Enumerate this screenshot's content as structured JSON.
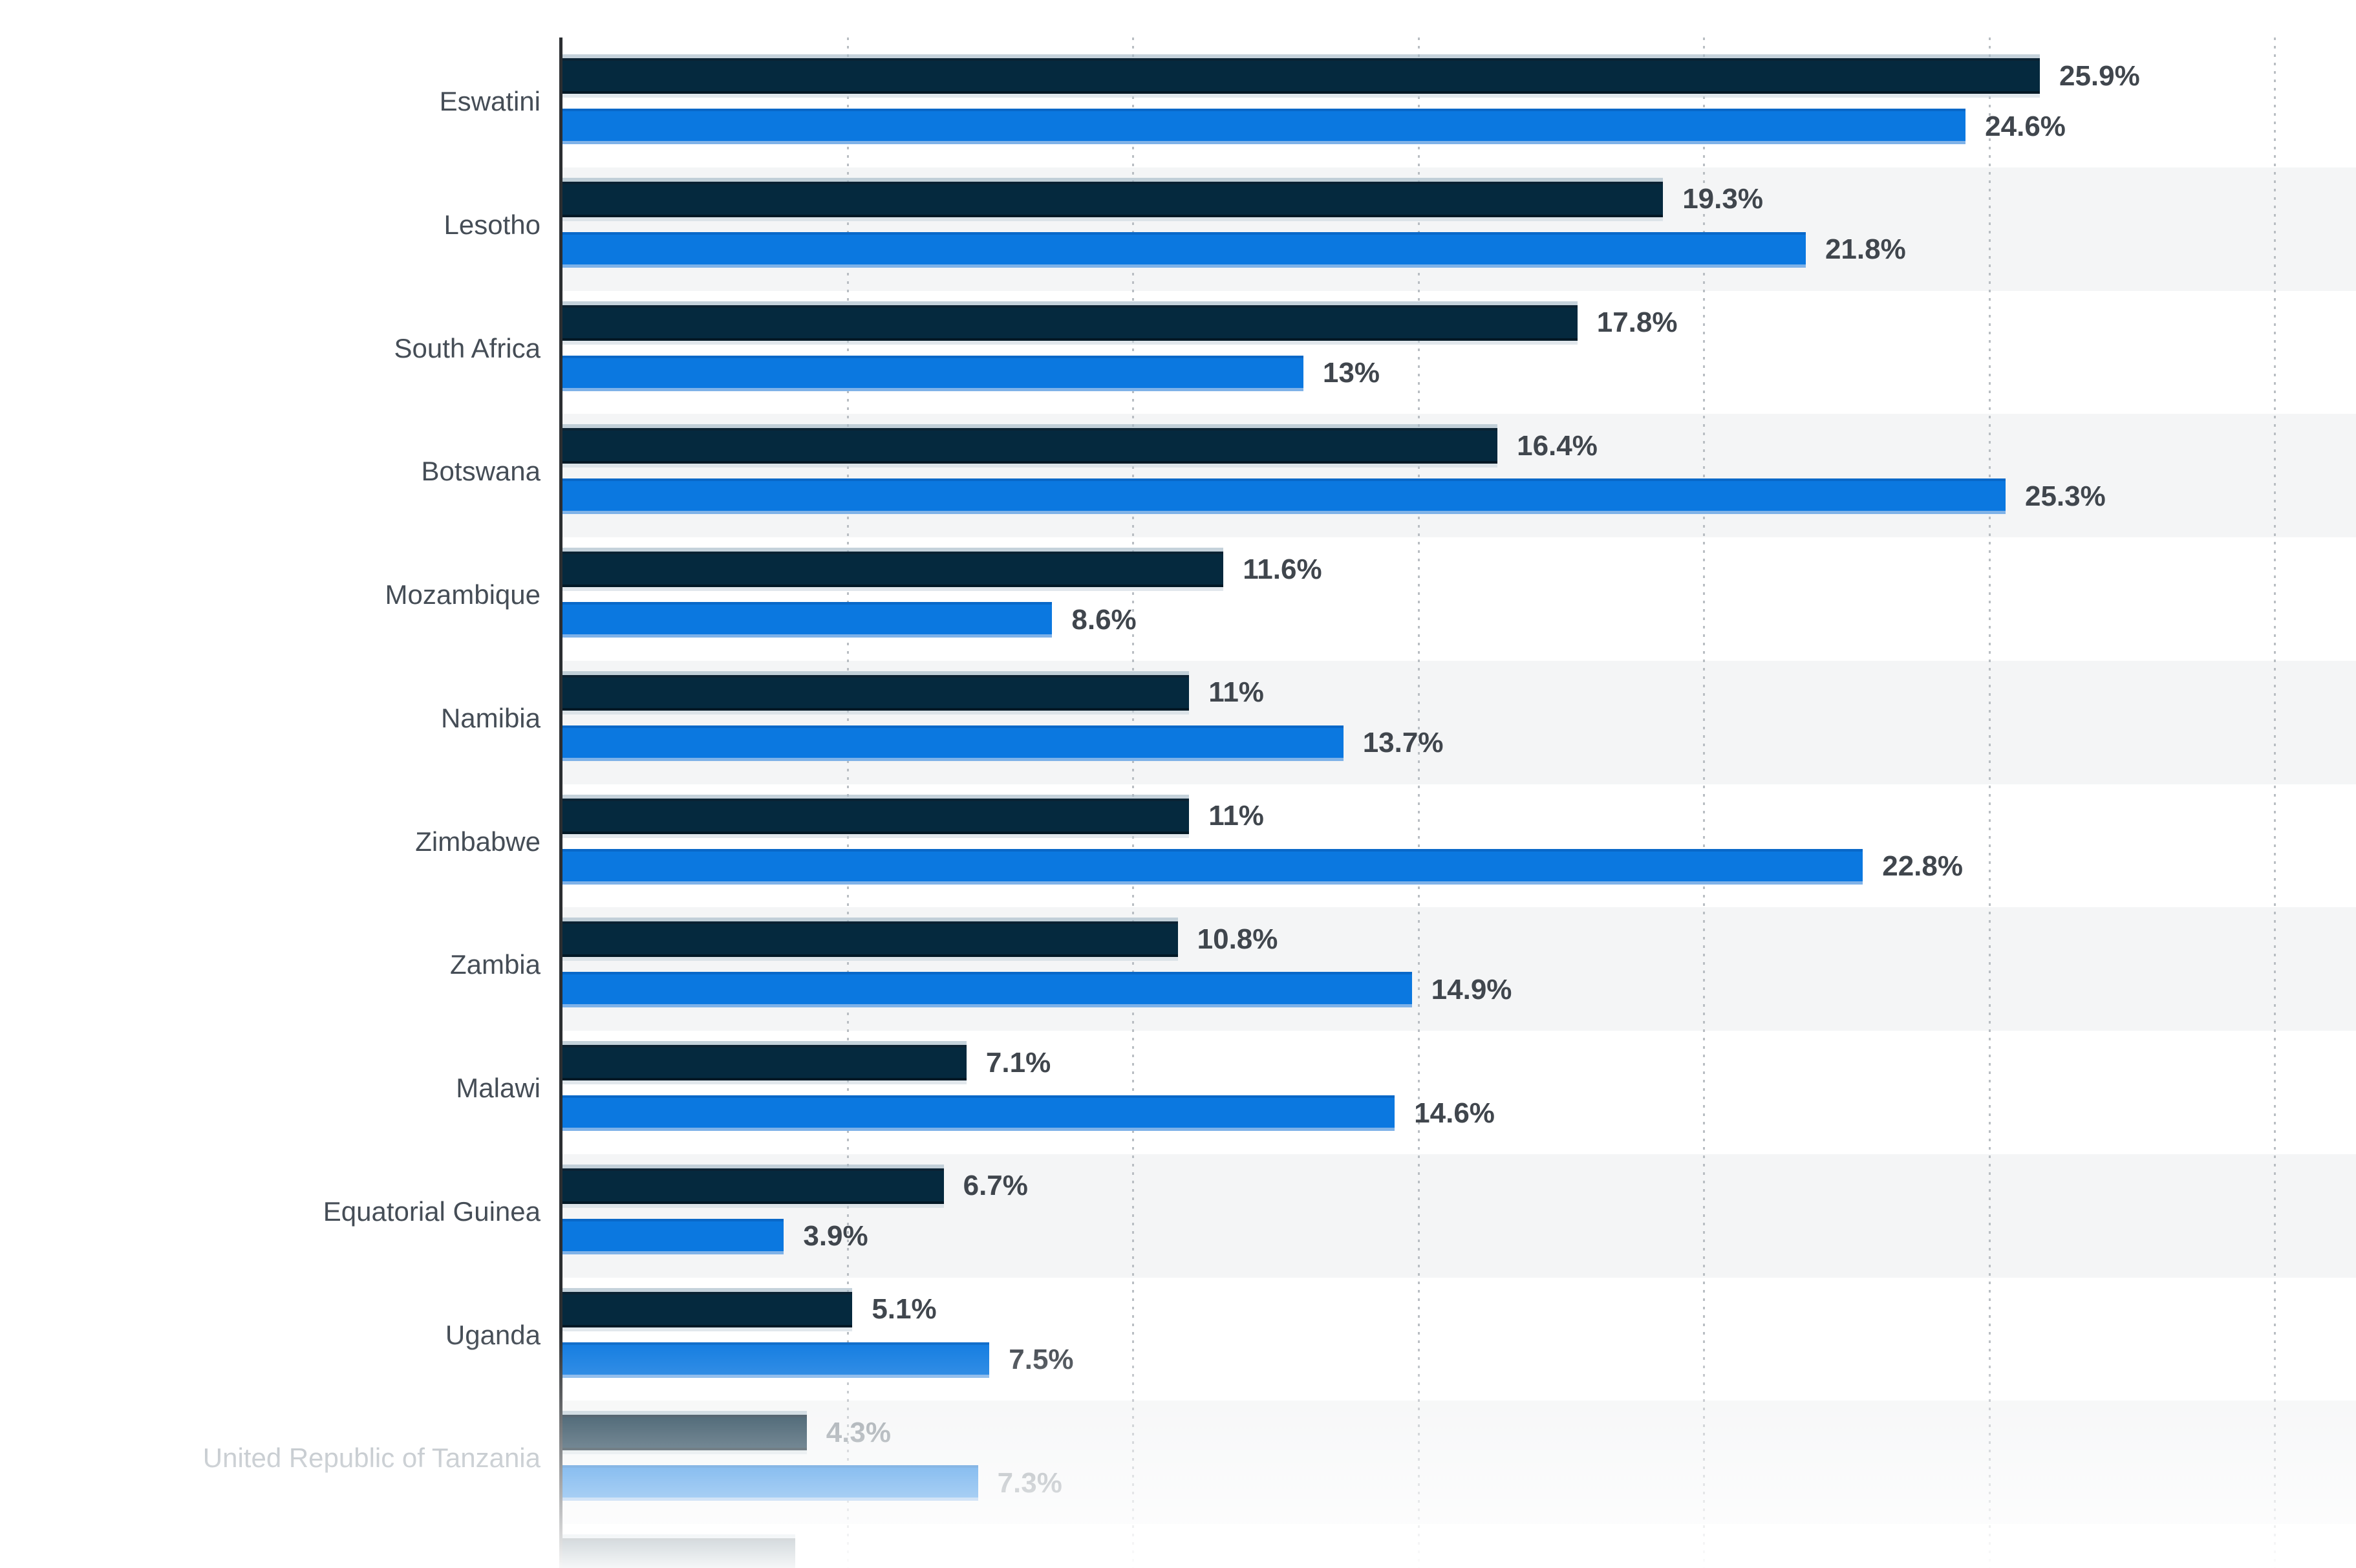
{
  "chart_data": {
    "type": "bar",
    "orientation": "horizontal",
    "unit": "percent",
    "grid": "dashed-vertical",
    "x_gridlines_pct": [
      5,
      10,
      15,
      20,
      25,
      30
    ],
    "xlim": [
      0,
      31.4
    ],
    "legend": "none",
    "series_names": [
      "dark-navy-series",
      "blue-series"
    ],
    "series_colors": {
      "dark": "#05293e",
      "blue": "#0b78e0"
    },
    "categories": [
      "Eswatini",
      "Lesotho",
      "South Africa",
      "Botswana",
      "Mozambique",
      "Namibia",
      "Zimbabwe",
      "Zambia",
      "Malawi",
      "Equatorial Guinea",
      "Uganda",
      "United Republic of Tanzania"
    ],
    "rows": [
      {
        "label": "Eswatini",
        "dark": 25.9,
        "dark_text": "25.9%",
        "blue": 24.6,
        "blue_text": "24.6%",
        "faded": false
      },
      {
        "label": "Lesotho",
        "dark": 19.3,
        "dark_text": "19.3%",
        "blue": 21.8,
        "blue_text": "21.8%",
        "faded": false
      },
      {
        "label": "South Africa",
        "dark": 17.8,
        "dark_text": "17.8%",
        "blue": 13,
        "blue_text": "13%",
        "faded": false
      },
      {
        "label": "Botswana",
        "dark": 16.4,
        "dark_text": "16.4%",
        "blue": 25.3,
        "blue_text": "25.3%",
        "faded": false
      },
      {
        "label": "Mozambique",
        "dark": 11.6,
        "dark_text": "11.6%",
        "blue": 8.6,
        "blue_text": "8.6%",
        "faded": false
      },
      {
        "label": "Namibia",
        "dark": 11,
        "dark_text": "11%",
        "blue": 13.7,
        "blue_text": "13.7%",
        "faded": false
      },
      {
        "label": "Zimbabwe",
        "dark": 11,
        "dark_text": "11%",
        "blue": 22.8,
        "blue_text": "22.8%",
        "faded": false
      },
      {
        "label": "Zambia",
        "dark": 10.8,
        "dark_text": "10.8%",
        "blue": 14.9,
        "blue_text": "14.9%",
        "faded": false
      },
      {
        "label": "Malawi",
        "dark": 7.1,
        "dark_text": "7.1%",
        "blue": 14.6,
        "blue_text": "14.6%",
        "faded": false
      },
      {
        "label": "Equatorial Guinea",
        "dark": 6.7,
        "dark_text": "6.7%",
        "blue": 3.9,
        "blue_text": "3.9%",
        "faded": false
      },
      {
        "label": "Uganda",
        "dark": 5.1,
        "dark_text": "5.1%",
        "blue": 7.5,
        "blue_text": "7.5%",
        "faded": false
      },
      {
        "label": "United Republic of Tanzania",
        "dark": 4.3,
        "dark_text": "4.3%",
        "blue": 7.3,
        "blue_text": "7.3%",
        "faded": true
      }
    ],
    "partial_bottom_row": {
      "dark_pct_visible": 4.1
    }
  },
  "colors": {
    "background": "#ffffff",
    "row_band": "#f4f5f6",
    "gridline": "#b9bec3",
    "axis": "#2b2e31",
    "label_text": "#454d56",
    "value_text": "#40464d",
    "faded_text": "#9aa3ab"
  }
}
